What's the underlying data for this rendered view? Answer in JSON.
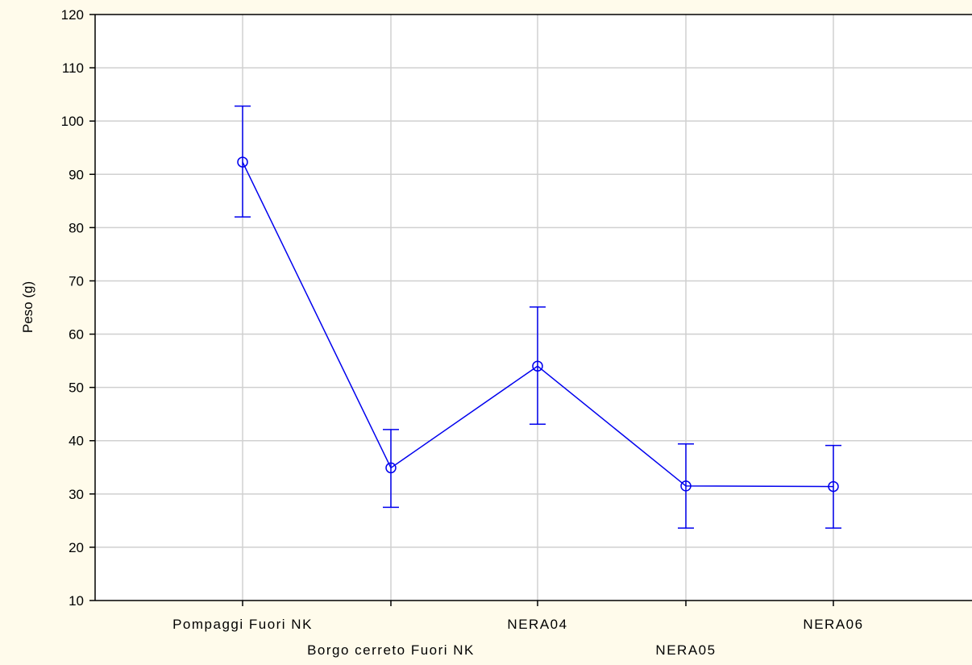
{
  "chart_data": {
    "type": "line",
    "title": "",
    "xlabel": "",
    "ylabel": "Peso (g)",
    "categories": [
      "Pompaggi Fuori NK",
      "Borgo cerreto Fuori NK",
      "NERA04",
      "NERA05",
      "NERA06"
    ],
    "series": [
      {
        "values": [
          92.3,
          34.9,
          54.0,
          31.5,
          31.4
        ],
        "error_low": [
          82.0,
          27.5,
          43.1,
          23.6,
          23.6
        ],
        "error_high": [
          102.8,
          42.1,
          65.1,
          39.4,
          39.1
        ],
        "color": "#0000ee"
      }
    ],
    "ylim": [
      10,
      120
    ],
    "yticks": [
      10,
      20,
      30,
      40,
      50,
      60,
      70,
      80,
      90,
      100,
      110,
      120
    ],
    "grid": true,
    "legend": "none"
  },
  "colors": {
    "background": "#fffbeb",
    "plot_area": "#ffffff",
    "grid": "#d0d0d0",
    "series": "#0000ee"
  }
}
